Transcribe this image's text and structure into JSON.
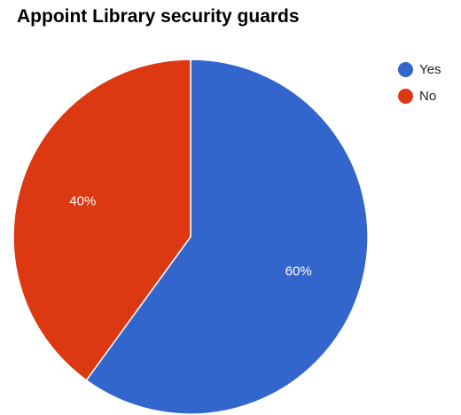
{
  "chart_data": {
    "type": "pie",
    "title": "Appoint Library security guards",
    "slices": [
      {
        "label": "Yes",
        "value": 60,
        "display": "60%",
        "color": "#3366cc"
      },
      {
        "label": "No",
        "value": 40,
        "display": "40%",
        "color": "#dc3912"
      }
    ],
    "legend": {
      "position": "right",
      "entries": [
        "Yes",
        "No"
      ]
    }
  }
}
